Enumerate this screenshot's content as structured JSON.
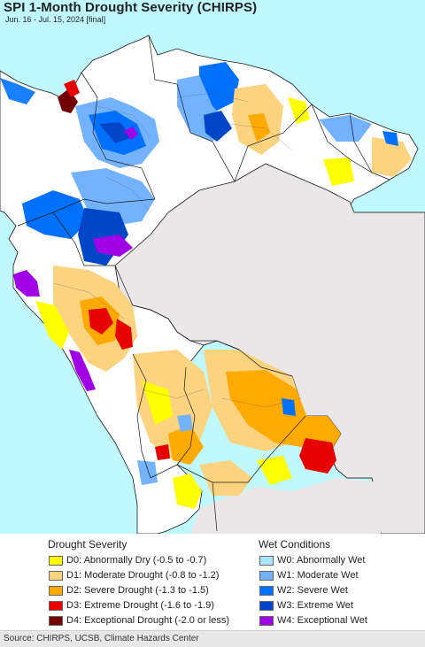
{
  "header": {
    "title": "SPI 1-Month Drought Severity (CHIRPS)",
    "subtitle": "Jun. 16 - Jul. 15, 2024 [final]"
  },
  "legend": {
    "drought_heading": "Drought Severity",
    "wet_heading": "Wet Conditions",
    "drought_items": [
      {
        "code": "D0",
        "label": "D0: Abnormally Dry (-0.5 to -0.7)",
        "color": "#ffff00"
      },
      {
        "code": "D1",
        "label": "D1: Moderate Drought (-0.8 to -1.2)",
        "color": "#fcd37f"
      },
      {
        "code": "D2",
        "label": "D2: Severe Drought (-1.3 to -1.5)",
        "color": "#ffaa00"
      },
      {
        "code": "D3",
        "label": "D3: Extreme Drought (-1.6 to -1.9)",
        "color": "#e60000"
      },
      {
        "code": "D4",
        "label": "D4: Exceptional Drought (-2.0 or less)",
        "color": "#730000"
      }
    ],
    "wet_items": [
      {
        "code": "W0",
        "label": "W0: Abnormally Wet",
        "color": "#aae5ff"
      },
      {
        "code": "W1",
        "label": "W1: Moderate Wet",
        "color": "#73b2ff"
      },
      {
        "code": "W2",
        "label": "W2: Severe Wet",
        "color": "#0070ff"
      },
      {
        "code": "W3",
        "label": "W3: Extreme Wet",
        "color": "#0046c8"
      },
      {
        "code": "W4",
        "label": "W4: Exceptional Wet",
        "color": "#a000e6"
      }
    ]
  },
  "footer": {
    "source": "Source: CHIRPS, UCSB, Climate Hazards Center"
  },
  "map_colors": {
    "ocean": "#bff8ff",
    "land_no_data": "#ffffff",
    "outside_region": "#ebe6e8",
    "border": "#1a1a1a"
  }
}
